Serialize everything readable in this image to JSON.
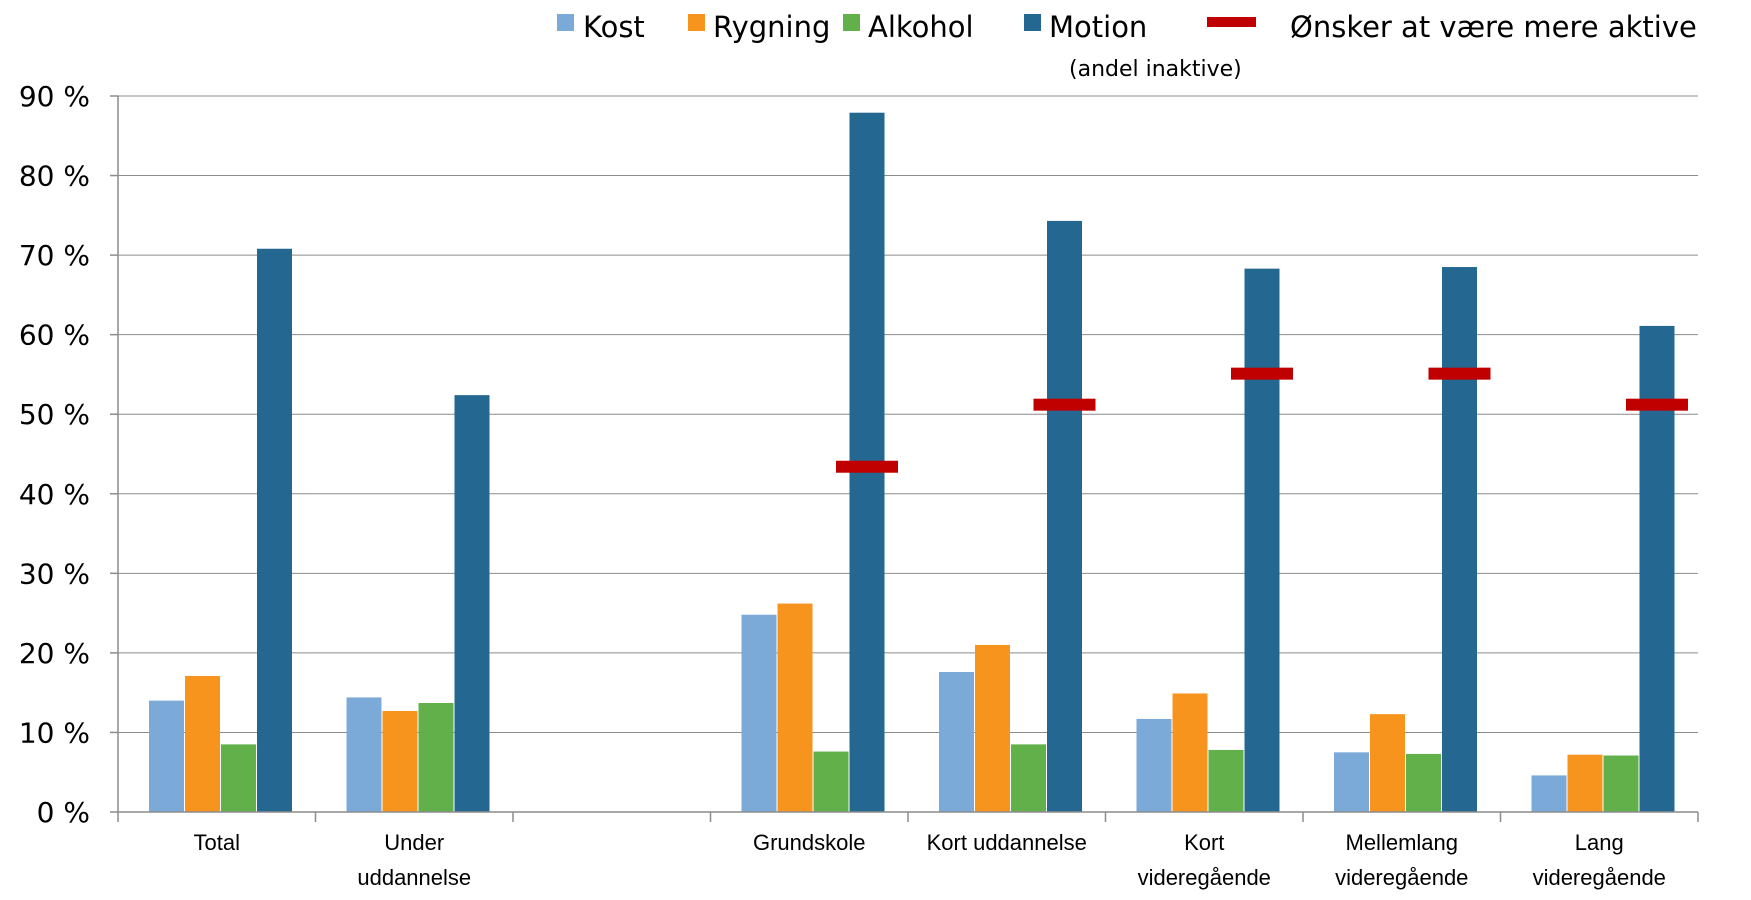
{
  "chart_data": {
    "type": "bar",
    "title": "",
    "xlabel": "",
    "ylabel": "",
    "ylim": [
      0,
      90
    ],
    "y_ticks": [
      0,
      10,
      20,
      30,
      40,
      50,
      60,
      70,
      80,
      90
    ],
    "y_tick_labels": [
      "0 %",
      "10 %",
      "20 %",
      "30 %",
      "40 %",
      "50 %",
      "60 %",
      "70 %",
      "80 %",
      "90 %"
    ],
    "grid": true,
    "legend_position": "top",
    "categories": [
      [
        "Total"
      ],
      [
        "Under",
        "uddannelse"
      ],
      [
        ""
      ],
      [
        "Grundskole"
      ],
      [
        "Kort uddannelse"
      ],
      [
        "Kort",
        "videregående"
      ],
      [
        "Mellemlang",
        "videregående"
      ],
      [
        "Lang",
        "videregående"
      ]
    ],
    "series": [
      {
        "name": "Kost",
        "color": "#7BA9D8",
        "values": [
          14.0,
          14.4,
          null,
          24.8,
          17.6,
          11.7,
          7.5,
          4.6
        ]
      },
      {
        "name": "Rygning",
        "color": "#F7941D",
        "values": [
          17.1,
          12.7,
          null,
          26.2,
          21.0,
          14.9,
          12.3,
          7.2
        ]
      },
      {
        "name": "Alkohol",
        "color": "#62B04A",
        "values": [
          8.5,
          13.7,
          null,
          7.6,
          8.5,
          7.8,
          7.3,
          7.1
        ]
      },
      {
        "name": "Motion",
        "sub": "(andel inaktive)",
        "color": "#246891",
        "values": [
          70.8,
          52.4,
          null,
          87.9,
          74.3,
          68.3,
          68.5,
          61.1
        ]
      }
    ],
    "markers": {
      "name": "Ønsker at være mere aktive",
      "color": "#C00000",
      "values": [
        null,
        null,
        null,
        43.4,
        51.2,
        55.1,
        55.1,
        51.2
      ]
    }
  }
}
